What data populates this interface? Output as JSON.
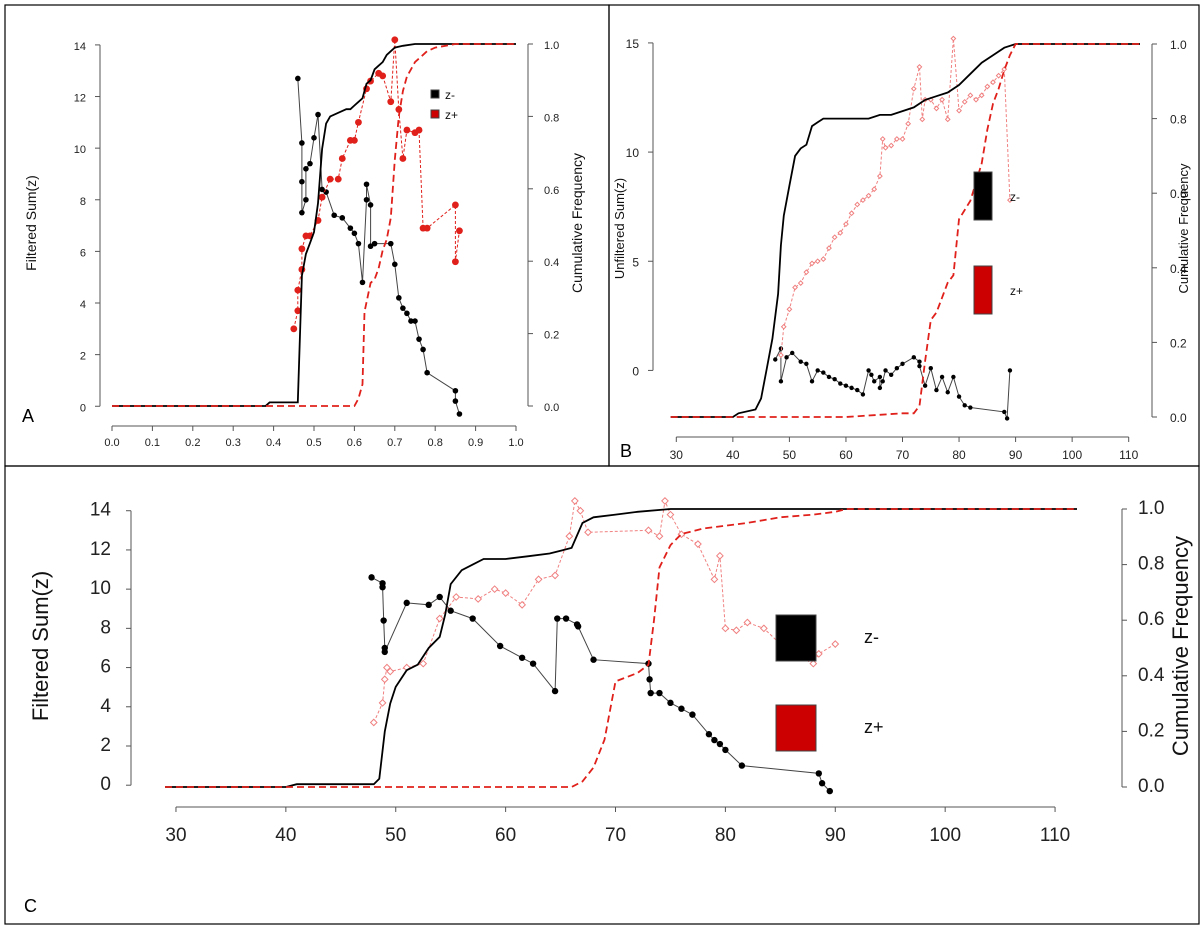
{
  "figure": {
    "colors": {
      "z_minus": "#000000",
      "z_plus": "#e0201b",
      "z_plus_light": "#f08080"
    }
  },
  "chart_data": [
    {
      "panel": "A",
      "type": "line",
      "xlim": [
        0.0,
        1.0
      ],
      "ylim": [
        -0.3,
        14.5
      ],
      "y2lim": [
        0.0,
        1.0
      ],
      "xticks": [
        "0.0",
        "0.1",
        "0.2",
        "0.3",
        "0.4",
        "0.5",
        "0.6",
        "0.7",
        "0.8",
        "0.9",
        "1.0"
      ],
      "yticks": [
        "0",
        "2",
        "4",
        "6",
        "8",
        "10",
        "12",
        "14"
      ],
      "y2ticks": [
        "0.0",
        "0.2",
        "0.4",
        "0.6",
        "0.8",
        "1.0"
      ],
      "ylabel": "Filtered Sum(z)",
      "y2label": "Cumulative Frequency",
      "legend": [
        "z-",
        "z+"
      ],
      "legend_position": "upper-right",
      "series": [
        {
          "name": "z-",
          "kind": "points",
          "axis": "left",
          "x": [
            0.46,
            0.47,
            0.47,
            0.47,
            0.48,
            0.48,
            0.49,
            0.5,
            0.51,
            0.52,
            0.53,
            0.55,
            0.57,
            0.59,
            0.6,
            0.61,
            0.62,
            0.63,
            0.63,
            0.64,
            0.64,
            0.65,
            0.69,
            0.7,
            0.71,
            0.72,
            0.73,
            0.74,
            0.75,
            0.76,
            0.77,
            0.78,
            0.85,
            0.85,
            0.86
          ],
          "y": [
            12.7,
            10.2,
            8.7,
            7.5,
            8.0,
            9.2,
            9.4,
            10.4,
            11.3,
            8.4,
            8.3,
            7.4,
            7.3,
            6.9,
            6.7,
            6.3,
            4.8,
            8.0,
            8.6,
            7.8,
            6.2,
            6.3,
            6.3,
            5.5,
            4.2,
            3.8,
            3.6,
            3.3,
            3.3,
            2.6,
            2.2,
            1.3,
            0.6,
            0.2,
            -0.3
          ]
        },
        {
          "name": "z+",
          "kind": "points",
          "axis": "left",
          "x": [
            0.45,
            0.46,
            0.46,
            0.47,
            0.47,
            0.48,
            0.49,
            0.51,
            0.52,
            0.54,
            0.56,
            0.57,
            0.59,
            0.6,
            0.61,
            0.63,
            0.64,
            0.66,
            0.67,
            0.69,
            0.7,
            0.71,
            0.72,
            0.73,
            0.75,
            0.76,
            0.77,
            0.78,
            0.85,
            0.85,
            0.86
          ],
          "y": [
            3.0,
            3.7,
            4.5,
            5.3,
            6.1,
            6.6,
            6.6,
            7.2,
            8.1,
            8.8,
            8.8,
            9.6,
            10.3,
            10.3,
            11.0,
            12.3,
            12.6,
            12.9,
            12.8,
            11.8,
            14.2,
            11.5,
            9.6,
            10.7,
            10.6,
            10.7,
            6.9,
            6.9,
            7.8,
            5.6,
            6.8
          ]
        },
        {
          "name": "z- cumulative",
          "kind": "cdf",
          "axis": "right",
          "x": [
            0.0,
            0.38,
            0.39,
            0.46,
            0.47,
            0.48,
            0.49,
            0.5,
            0.51,
            0.52,
            0.53,
            0.54,
            0.56,
            0.58,
            0.59,
            0.6,
            0.61,
            0.62,
            0.63,
            0.64,
            0.65,
            0.66,
            0.67,
            0.68,
            0.69,
            0.7,
            0.72,
            0.75,
            0.8,
            0.9,
            1.0
          ],
          "y": [
            0.0,
            0.0,
            0.01,
            0.01,
            0.36,
            0.42,
            0.45,
            0.48,
            0.56,
            0.71,
            0.78,
            0.8,
            0.81,
            0.82,
            0.82,
            0.83,
            0.84,
            0.85,
            0.89,
            0.9,
            0.93,
            0.94,
            0.95,
            0.97,
            0.98,
            0.99,
            0.995,
            1.0,
            1.0,
            1.0,
            1.0
          ]
        },
        {
          "name": "z+ cumulative",
          "kind": "cdf",
          "axis": "right",
          "x": [
            0.0,
            0.4,
            0.6,
            0.61,
            0.62,
            0.625,
            0.64,
            0.65,
            0.66,
            0.67,
            0.68,
            0.69,
            0.7,
            0.71,
            0.72,
            0.73,
            0.75,
            0.78,
            0.8,
            0.85,
            0.9,
            1.0
          ],
          "y": [
            0.0,
            0.0,
            0.0,
            0.02,
            0.06,
            0.26,
            0.34,
            0.35,
            0.38,
            0.43,
            0.46,
            0.52,
            0.68,
            0.8,
            0.87,
            0.91,
            0.95,
            0.98,
            0.99,
            1.0,
            1.0,
            1.0
          ]
        }
      ]
    },
    {
      "panel": "B",
      "type": "line",
      "xlim": [
        28,
        112
      ],
      "ylim": [
        -2.5,
        15.5
      ],
      "y2lim": [
        0.0,
        1.0
      ],
      "xticks": [
        "30",
        "40",
        "50",
        "60",
        "70",
        "80",
        "90",
        "100",
        "110"
      ],
      "yticks": [
        "0",
        "5",
        "10",
        "15"
      ],
      "y2ticks": [
        "0.0",
        "0.2",
        "0.4",
        "0.6",
        "0.8",
        "1.0"
      ],
      "ylabel": "Unfiltered Sum(z)",
      "y2label": "Cumulative Frequency",
      "legend": [
        "z-",
        "z+"
      ],
      "legend_position": "center-right",
      "series": [
        {
          "name": "z-",
          "kind": "points",
          "axis": "left",
          "x": [
            47.5,
            48.5,
            48.5,
            49.5,
            50.5,
            52,
            53,
            54,
            55,
            56,
            57,
            58,
            59,
            60,
            61,
            62,
            63,
            64,
            64.5,
            65,
            66,
            66,
            66.5,
            67,
            68,
            69,
            70,
            72,
            73,
            73,
            74,
            75,
            76,
            77,
            78,
            79,
            80,
            81,
            82,
            88,
            88.5,
            89
          ],
          "y": [
            0.5,
            1.0,
            -0.5,
            0.6,
            0.8,
            0.4,
            0.3,
            -0.5,
            0.0,
            -0.1,
            -0.3,
            -0.4,
            -0.6,
            -0.7,
            -0.8,
            -0.9,
            -1.1,
            0.0,
            -0.2,
            -0.5,
            -0.3,
            -0.8,
            -0.5,
            0.0,
            -0.2,
            0.1,
            0.3,
            0.6,
            0.4,
            0.2,
            -0.7,
            0.1,
            -0.9,
            -0.3,
            -1.0,
            -0.3,
            -1.2,
            -1.6,
            -1.7,
            -1.9,
            -2.2,
            0.0
          ]
        },
        {
          "name": "z+",
          "kind": "points",
          "axis": "left",
          "x": [
            48.5,
            49,
            50,
            51,
            52,
            53,
            54,
            55,
            56,
            57,
            58,
            59,
            60,
            61,
            62,
            63,
            64,
            65,
            66,
            66.5,
            67,
            68,
            69,
            70,
            71,
            72,
            73,
            73.5,
            74,
            75,
            76,
            77,
            78,
            79,
            80,
            81,
            82,
            83,
            84,
            85,
            86,
            87,
            88,
            89
          ],
          "y": [
            0.7,
            2.0,
            2.8,
            3.8,
            4.0,
            4.5,
            4.9,
            5.0,
            5.1,
            5.6,
            6.1,
            6.3,
            6.7,
            7.2,
            7.6,
            7.8,
            8.0,
            8.3,
            8.9,
            10.6,
            10.2,
            10.3,
            10.6,
            10.6,
            11.3,
            12.9,
            13.9,
            11.5,
            12.4,
            12.4,
            12.0,
            12.4,
            11.5,
            15.2,
            11.9,
            12.3,
            12.6,
            12.4,
            12.6,
            13.0,
            13.2,
            13.5,
            13.8,
            7.8
          ]
        },
        {
          "name": "z- cumulative",
          "kind": "cdf",
          "axis": "right",
          "x": [
            29,
            40,
            41,
            44,
            45,
            46,
            47,
            48,
            48.5,
            49,
            50,
            51,
            52,
            53,
            54,
            55,
            56,
            58,
            60,
            62,
            64,
            66,
            68,
            70,
            72,
            74,
            76,
            78,
            80,
            82,
            84,
            86,
            88,
            90,
            100,
            112
          ],
          "y": [
            0.0,
            0.0,
            0.01,
            0.02,
            0.05,
            0.13,
            0.21,
            0.33,
            0.46,
            0.54,
            0.62,
            0.7,
            0.72,
            0.73,
            0.78,
            0.79,
            0.8,
            0.8,
            0.8,
            0.8,
            0.8,
            0.81,
            0.81,
            0.82,
            0.83,
            0.85,
            0.86,
            0.87,
            0.89,
            0.92,
            0.95,
            0.97,
            0.99,
            1.0,
            1.0,
            1.0
          ]
        },
        {
          "name": "z+ cumulative",
          "kind": "cdf",
          "axis": "right",
          "x": [
            29,
            60,
            70,
            72,
            73,
            74,
            75,
            76,
            77,
            78,
            79,
            80,
            82,
            84,
            85,
            86,
            87,
            88,
            89,
            90,
            100,
            112
          ],
          "y": [
            0.0,
            0.0,
            0.01,
            0.01,
            0.03,
            0.15,
            0.26,
            0.28,
            0.32,
            0.36,
            0.38,
            0.53,
            0.58,
            0.68,
            0.77,
            0.84,
            0.88,
            0.93,
            0.97,
            1.0,
            1.0,
            1.0
          ]
        }
      ]
    },
    {
      "panel": "C",
      "type": "line",
      "xlim": [
        27,
        115
      ],
      "ylim": [
        -0.5,
        14.7
      ],
      "y2lim": [
        0.0,
        1.0
      ],
      "xticks": [
        "30",
        "40",
        "50",
        "60",
        "70",
        "80",
        "90",
        "100",
        "110"
      ],
      "yticks": [
        "0",
        "2",
        "4",
        "6",
        "8",
        "10",
        "12",
        "14"
      ],
      "y2ticks": [
        "0.0",
        "0.2",
        "0.4",
        "0.6",
        "0.8",
        "1.0"
      ],
      "ylabel": "Filtered Sum(z)",
      "y2label": "Cumulative Frequency",
      "legend": [
        "z-",
        "z+"
      ],
      "legend_position": "center-right",
      "series": [
        {
          "name": "z-",
          "kind": "points",
          "axis": "left",
          "x": [
            47.8,
            48.8,
            48.8,
            48.9,
            49.0,
            49.0,
            51.0,
            53.0,
            54.0,
            55.0,
            57.0,
            59.5,
            61.5,
            62.5,
            64.5,
            64.7,
            65.5,
            66.5,
            66.6,
            68.0,
            73.0,
            73.1,
            73.2,
            74.0,
            75.0,
            76.0,
            77.0,
            78.5,
            79.0,
            79.5,
            80.0,
            81.5,
            88.5,
            88.8,
            89.5
          ],
          "y": [
            10.6,
            10.3,
            10.1,
            8.4,
            7.0,
            6.8,
            9.3,
            9.2,
            9.6,
            8.9,
            8.5,
            7.1,
            6.5,
            6.2,
            4.8,
            8.5,
            8.5,
            8.2,
            8.1,
            6.4,
            6.2,
            5.4,
            4.7,
            4.7,
            4.2,
            3.9,
            3.6,
            2.6,
            2.3,
            2.1,
            1.8,
            1.0,
            0.6,
            0.1,
            -0.3
          ]
        },
        {
          "name": "z+",
          "kind": "points",
          "axis": "left",
          "x": [
            48.0,
            48.8,
            49.0,
            49.2,
            49.5,
            51.0,
            52.5,
            54.0,
            55.5,
            57.5,
            59.0,
            60.0,
            61.5,
            63.0,
            64.5,
            65.8,
            66.3,
            66.8,
            67.5,
            73.0,
            74.0,
            74.5,
            75.0,
            76.0,
            77.5,
            79.0,
            79.5,
            80.0,
            81.0,
            82.0,
            83.5,
            85.0,
            86.5,
            88.0,
            88.5,
            90.0
          ],
          "y": [
            3.2,
            4.2,
            5.4,
            6.0,
            5.8,
            6.0,
            6.2,
            8.5,
            9.6,
            9.5,
            10.0,
            9.8,
            9.2,
            10.5,
            10.7,
            12.7,
            14.5,
            14.0,
            12.9,
            13.0,
            12.7,
            14.5,
            13.8,
            12.8,
            12.3,
            10.5,
            11.7,
            8.0,
            7.9,
            8.3,
            8.0,
            7.2,
            6.6,
            6.2,
            6.7,
            7.2
          ]
        },
        {
          "name": "z- cumulative",
          "kind": "cdf",
          "axis": "right",
          "x": [
            29,
            40,
            41,
            44,
            47,
            48,
            48.5,
            49,
            49.5,
            50,
            51,
            52,
            53,
            54,
            54.5,
            55,
            56,
            57,
            58,
            60,
            62,
            64,
            65,
            66,
            67,
            68,
            70,
            72,
            75,
            80,
            90,
            100,
            112
          ],
          "y": [
            0.0,
            0.0,
            0.01,
            0.01,
            0.01,
            0.01,
            0.03,
            0.2,
            0.3,
            0.36,
            0.42,
            0.44,
            0.5,
            0.54,
            0.62,
            0.73,
            0.78,
            0.8,
            0.82,
            0.82,
            0.83,
            0.84,
            0.85,
            0.86,
            0.95,
            0.97,
            0.98,
            0.99,
            1.0,
            1.0,
            1.0,
            1.0,
            1.0
          ]
        },
        {
          "name": "z+ cumulative",
          "kind": "cdf",
          "axis": "right",
          "x": [
            29,
            60,
            66,
            67,
            68,
            69,
            70,
            72,
            73,
            73.5,
            74,
            75,
            76,
            78,
            80,
            82,
            85,
            88,
            90,
            91,
            100,
            112
          ],
          "y": [
            0.0,
            0.0,
            0.0,
            0.02,
            0.07,
            0.17,
            0.38,
            0.41,
            0.44,
            0.6,
            0.79,
            0.87,
            0.91,
            0.93,
            0.94,
            0.95,
            0.97,
            0.98,
            0.99,
            1.0,
            1.0,
            1.0
          ]
        }
      ]
    }
  ]
}
